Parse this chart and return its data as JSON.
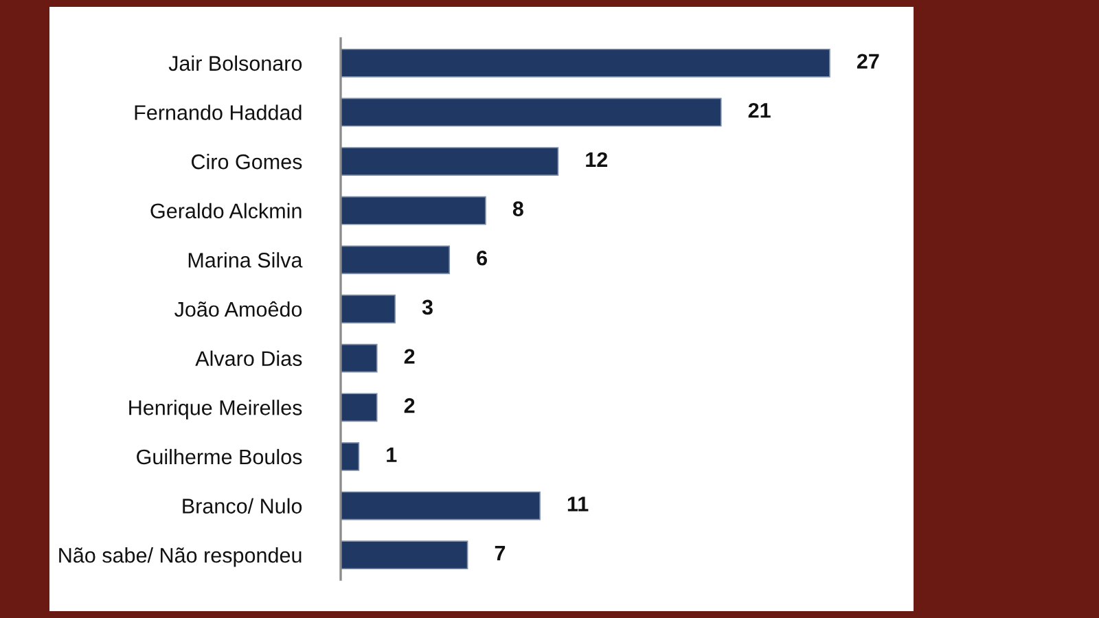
{
  "chart_data": {
    "type": "bar",
    "orientation": "horizontal",
    "categories": [
      "Jair Bolsonaro",
      "Fernando Haddad",
      "Ciro Gomes",
      "Geraldo Alckmin",
      "Marina Silva",
      "João Amoêdo",
      "Alvaro Dias",
      "Henrique Meirelles",
      "Guilherme Boulos",
      "Branco/ Nulo",
      "Não sabe/ Não respondeu"
    ],
    "values": [
      27,
      21,
      12,
      8,
      6,
      3,
      2,
      2,
      1,
      11,
      7
    ],
    "color": "#203864",
    "data_labels": true
  }
}
